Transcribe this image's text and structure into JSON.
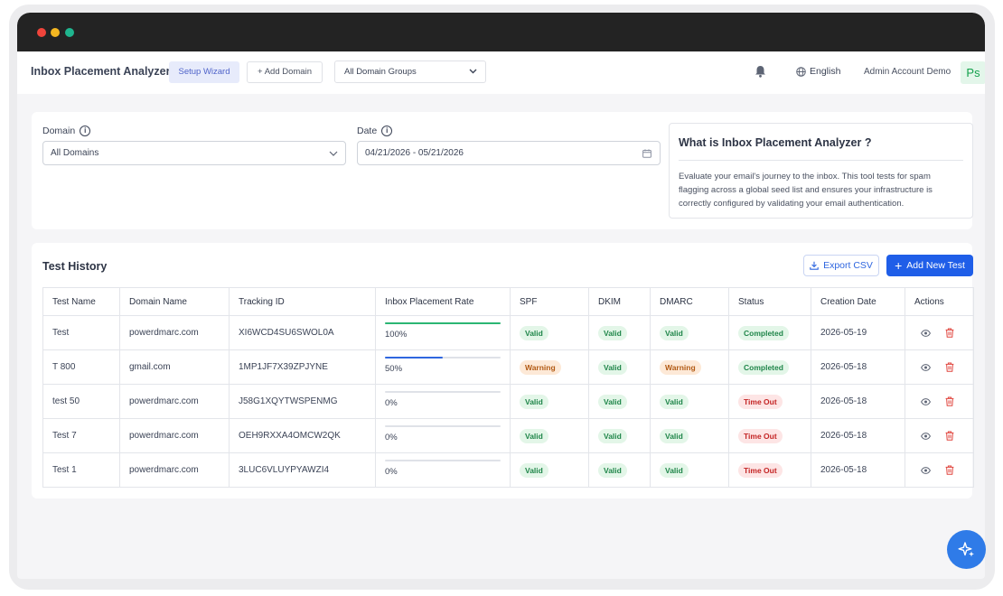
{
  "window": {
    "dots": [
      "#f0443b",
      "#f4b721",
      "#1fb58f"
    ]
  },
  "nav": {
    "app_title": "Inbox Placement Analyzer",
    "setup_wizard": "Setup Wizard",
    "add_domain": "Add Domain",
    "domain_group": "All Domain Groups",
    "language": "English",
    "account": "Admin Account Demo",
    "avatar": "Ps"
  },
  "filters": {
    "domain_label": "Domain",
    "domain_value": "All Domains",
    "date_label": "Date",
    "date_value": "04/21/2026 - 05/21/2026"
  },
  "info": {
    "title": "What is Inbox Placement Analyzer ?",
    "text": "Evaluate your email's journey to the inbox. This tool tests for spam flagging across a global seed list and ensures your infrastructure is correctly configured by validating your email authentication."
  },
  "history": {
    "title": "Test History",
    "export_label": "Export CSV",
    "add_label": "Add New Test",
    "columns": [
      "Test Name",
      "Domain Name",
      "Tracking ID",
      "Inbox Placement Rate",
      "SPF",
      "DKIM",
      "DMARC",
      "Status",
      "Creation Date",
      "Actions"
    ],
    "rows": [
      {
        "name": "Test",
        "domain": "powerdmarc.com",
        "tracking": "XI6WCD4SU6SWOL0A",
        "rate": 100,
        "rate_label": "100%",
        "rate_color": "#2bb673",
        "spf": "Valid",
        "dkim": "Valid",
        "dmarc": "Valid",
        "status": "Completed",
        "date": "2026-05-19"
      },
      {
        "name": "T 800",
        "domain": "gmail.com",
        "tracking": "1MP1JF7X39ZPJYNE",
        "rate": 50,
        "rate_label": "50%",
        "rate_color": "#2f66df",
        "spf": "Warning",
        "dkim": "Valid",
        "dmarc": "Warning",
        "status": "Completed",
        "date": "2026-05-18"
      },
      {
        "name": "test 50",
        "domain": "powerdmarc.com",
        "tracking": "J58G1XQYTWSPENMG",
        "rate": 0,
        "rate_label": "0%",
        "rate_color": "#2f66df",
        "spf": "Valid",
        "dkim": "Valid",
        "dmarc": "Valid",
        "status": "Time Out",
        "date": "2026-05-18"
      },
      {
        "name": "Test 7",
        "domain": "powerdmarc.com",
        "tracking": "OEH9RXXA4OMCW2QK",
        "rate": 0,
        "rate_label": "0%",
        "rate_color": "#2f66df",
        "spf": "Valid",
        "dkim": "Valid",
        "dmarc": "Valid",
        "status": "Time Out",
        "date": "2026-05-18"
      },
      {
        "name": "Test 1",
        "domain": "powerdmarc.com",
        "tracking": "3LUC6VLUYPYAWZI4",
        "rate": 0,
        "rate_label": "0%",
        "rate_color": "#2f66df",
        "spf": "Valid",
        "dkim": "Valid",
        "dmarc": "Valid",
        "status": "Time Out",
        "date": "2026-05-18"
      }
    ]
  },
  "icons": {
    "bell": "bell-icon",
    "globe": "globe-icon",
    "chevron": "chevron-down-icon",
    "calendar": "calendar-icon",
    "info": "info-icon",
    "download": "download-icon",
    "plus": "plus-icon",
    "eye": "eye-icon",
    "trash": "trash-icon",
    "sparkle": "sparkle-icon"
  },
  "colors": {
    "primary": "#1f5ee8",
    "valid": "#20864a",
    "warning": "#b25a14",
    "timeout": "#c42525"
  }
}
